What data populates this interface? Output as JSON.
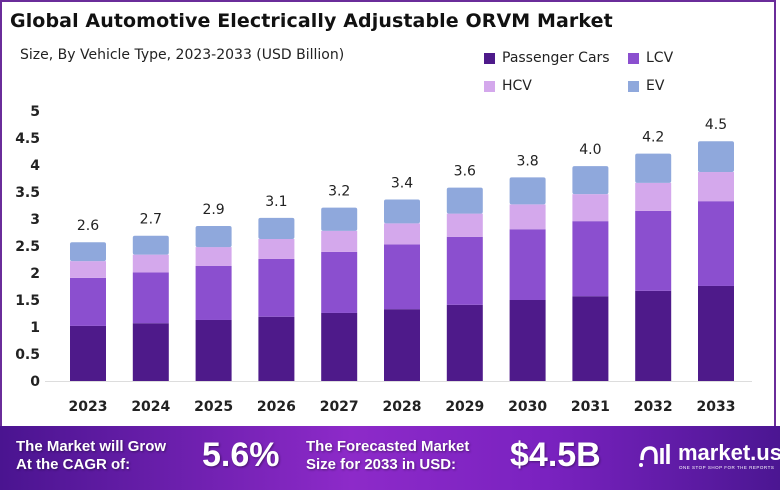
{
  "chart_data": {
    "type": "bar",
    "stacked": true,
    "title": "Global Automotive Electrically Adjustable ORVM Market",
    "subtitle": "Size, By Vehicle Type, 2023-2033 (USD Billion)",
    "categories": [
      "2023",
      "2024",
      "2025",
      "2026",
      "2027",
      "2028",
      "2029",
      "2030",
      "2031",
      "2032",
      "2033"
    ],
    "series": [
      {
        "name": "Passenger Cars",
        "color": "#4e1a8a",
        "values": [
          1.02,
          1.07,
          1.13,
          1.19,
          1.26,
          1.33,
          1.41,
          1.5,
          1.57,
          1.67,
          1.76
        ]
      },
      {
        "name": "LCV",
        "color": "#8b4fcf",
        "values": [
          0.89,
          0.94,
          1.0,
          1.07,
          1.13,
          1.2,
          1.26,
          1.31,
          1.39,
          1.48,
          1.57
        ]
      },
      {
        "name": "HCV",
        "color": "#d4a8ec",
        "values": [
          0.31,
          0.33,
          0.35,
          0.37,
          0.39,
          0.39,
          0.43,
          0.46,
          0.5,
          0.52,
          0.54
        ]
      },
      {
        "name": "EV",
        "color": "#8fa8dc",
        "values": [
          0.35,
          0.35,
          0.39,
          0.39,
          0.43,
          0.44,
          0.48,
          0.5,
          0.52,
          0.54,
          0.57
        ]
      }
    ],
    "totals": [
      "2.6",
      "2.7",
      "2.9",
      "3.1",
      "3.2",
      "3.4",
      "3.6",
      "3.8",
      "4.0",
      "4.2",
      "4.5"
    ],
    "yticks": [
      "0",
      "0.5",
      "1",
      "1.5",
      "2",
      "2.5",
      "3",
      "3.5",
      "4",
      "4.5",
      "5"
    ],
    "ylim": [
      0,
      5
    ],
    "grid": false,
    "legend_position": "top-right"
  },
  "footer": {
    "cagr_label_1": "The Market will Grow",
    "cagr_label_2": "At the CAGR of:",
    "cagr_value": "5.6%",
    "forecast_label_1": "The Forecasted Market",
    "forecast_label_2": "Size for 2033 in USD:",
    "forecast_value": "$4.5B",
    "logo_name": "market.us",
    "logo_tagline": "ONE STOP SHOP FOR THE REPORTS"
  }
}
